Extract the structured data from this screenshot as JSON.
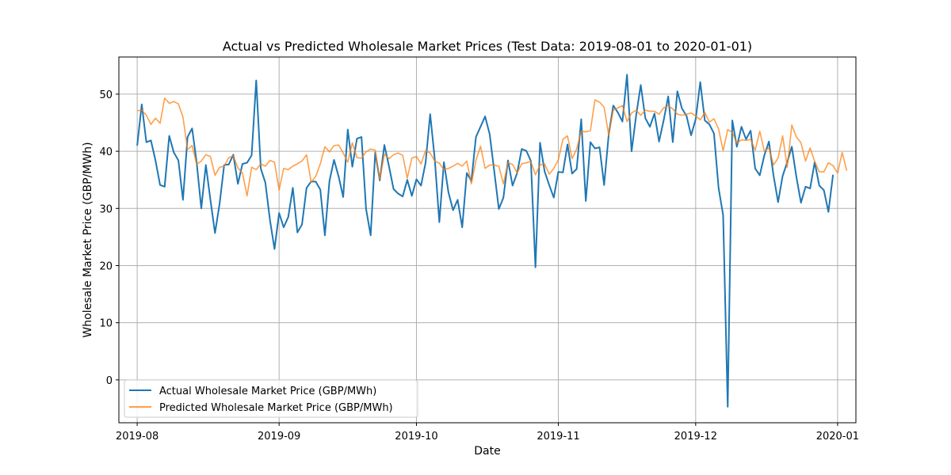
{
  "chart_data": {
    "type": "line",
    "title": "Actual vs Predicted Wholesale Market Prices (Test Data: 2019-08-01 to 2020-01-01)",
    "xlabel": "Date",
    "ylabel": "Wholesale Market Price (GBP/MWh)",
    "x_start": "2019-08-01",
    "x_end": "2019-12-31",
    "xlim": [
      "2019-07-28",
      "2020-01-05"
    ],
    "ylim": [
      -7.5,
      56.5
    ],
    "xticks": [
      {
        "date": "2019-08-01",
        "label": "2019-08"
      },
      {
        "date": "2019-09-01",
        "label": "2019-09"
      },
      {
        "date": "2019-10-01",
        "label": "2019-10"
      },
      {
        "date": "2019-11-01",
        "label": "2019-11"
      },
      {
        "date": "2019-12-01",
        "label": "2019-12"
      },
      {
        "date": "2020-01-01",
        "label": "2020-01"
      }
    ],
    "yticks": [
      0,
      10,
      20,
      30,
      40,
      50
    ],
    "grid": true,
    "legend_position": "lower-left",
    "series": [
      {
        "name": "Actual Wholesale Market Price (GBP/MWh)",
        "color": "#1f77b4",
        "values": [
          41.0,
          48.2,
          41.6,
          41.9,
          38.4,
          34.1,
          33.8,
          42.7,
          39.8,
          38.4,
          31.5,
          42.5,
          44.0,
          38.0,
          30.0,
          37.6,
          31.5,
          25.7,
          30.8,
          37.6,
          37.7,
          39.4,
          34.3,
          37.8,
          38.0,
          39.3,
          52.4,
          37.0,
          34.5,
          28.0,
          22.9,
          29.2,
          26.7,
          28.5,
          33.6,
          25.8,
          27.2,
          33.6,
          34.7,
          34.7,
          33.3,
          25.3,
          34.8,
          38.5,
          35.6,
          32.0,
          43.8,
          37.3,
          42.2,
          42.5,
          29.9,
          25.3,
          39.8,
          34.9,
          41.1,
          37.4,
          33.4,
          32.6,
          32.1,
          35.0,
          32.2,
          35.1,
          34.0,
          38.0,
          46.5,
          38.7,
          27.6,
          38.1,
          32.8,
          29.7,
          31.5,
          26.7,
          36.2,
          34.8,
          42.5,
          44.3,
          46.1,
          43.0,
          36.5,
          29.9,
          31.9,
          38.4,
          34.0,
          36.2,
          40.4,
          40.1,
          38.3,
          19.7,
          41.5,
          36.5,
          34.1,
          31.9,
          36.4,
          36.3,
          41.2,
          36.1,
          36.9,
          45.6,
          31.3,
          41.6,
          40.5,
          40.7,
          34.1,
          42.9,
          48.0,
          46.8,
          45.2,
          53.4,
          40.0,
          46.3,
          51.6,
          45.8,
          44.3,
          46.6,
          41.7,
          45.4,
          49.6,
          41.6,
          50.5,
          47.5,
          46.2,
          42.8,
          45.6,
          52.1,
          45.4,
          44.7,
          43.1,
          33.6,
          28.8,
          -4.7,
          45.4,
          40.8,
          44.3,
          42.1,
          43.6,
          37.0,
          35.8,
          39.3,
          41.7,
          35.8,
          31.1,
          35.7,
          38.1,
          40.8,
          35.5,
          31.0,
          33.8,
          33.5,
          38.1,
          34.0,
          33.2,
          29.4,
          35.9
        ]
      },
      {
        "name": "Predicted Wholesale Market Price (GBP/MWh)",
        "color": "#ff7f0e",
        "values": [
          47.1,
          47.2,
          46.3,
          44.7,
          45.8,
          44.9,
          49.3,
          48.4,
          48.7,
          48.3,
          46.0,
          40.3,
          41.0,
          37.7,
          38.3,
          39.4,
          39.1,
          35.8,
          37.2,
          37.4,
          38.9,
          39.2,
          37.1,
          36.2,
          32.2,
          37.2,
          36.8,
          37.8,
          37.4,
          38.4,
          38.1,
          33.2,
          37.0,
          36.8,
          37.4,
          37.8,
          38.3,
          39.4,
          34.6,
          35.6,
          37.8,
          40.8,
          39.9,
          41.0,
          41.1,
          39.7,
          38.1,
          41.5,
          38.9,
          38.8,
          39.9,
          40.4,
          40.2,
          35.1,
          39.5,
          38.7,
          39.4,
          39.7,
          39.3,
          35.3,
          38.8,
          39.1,
          37.8,
          40.1,
          39.7,
          38.3,
          37.9,
          36.8,
          37.0,
          37.4,
          37.9,
          37.4,
          38.3,
          34.3,
          38.4,
          40.9,
          37.0,
          37.6,
          37.6,
          37.4,
          34.3,
          38.0,
          37.7,
          36.2,
          37.8,
          38.0,
          38.2,
          35.9,
          37.6,
          37.8,
          36.0,
          37.0,
          38.5,
          42.1,
          42.7,
          38.7,
          40.4,
          43.5,
          43.4,
          43.6,
          49.0,
          48.6,
          47.7,
          42.8,
          47.2,
          47.6,
          48.0,
          45.2,
          46.7,
          47.2,
          46.3,
          47.2,
          47.0,
          47.0,
          46.5,
          47.6,
          48.0,
          47.4,
          46.5,
          46.3,
          46.5,
          46.7,
          46.2,
          45.5,
          46.8,
          45.1,
          45.7,
          43.9,
          40.1,
          43.8,
          43.3,
          41.4,
          42.0,
          41.9,
          42.1,
          40.2,
          43.5,
          40.0,
          40.6,
          37.6,
          38.8,
          42.7,
          37.2,
          44.6,
          42.5,
          41.5,
          38.3,
          40.6,
          38.2,
          36.4,
          36.4,
          38.0,
          37.5,
          36.2,
          39.8,
          36.6
        ]
      }
    ]
  }
}
